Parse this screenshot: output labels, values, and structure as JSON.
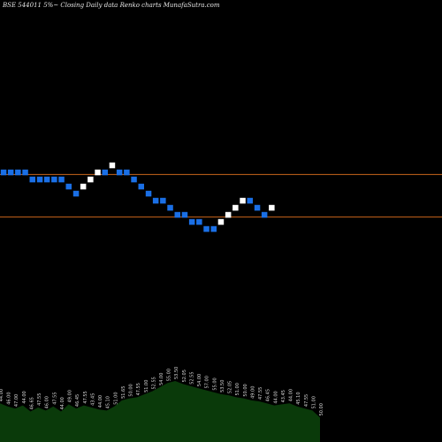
{
  "chart_data": {
    "type": "renko",
    "title": "BSE 544011 5%~ Closing Daily data Renko charts MunafaSutra.com",
    "colors": {
      "background": "#000000",
      "up_brick": "#ffffff",
      "down_brick": "#1a6fe6",
      "reference_line": "#c8651b",
      "volume_fill": "#0a3a0a",
      "volume_label": "#d8d8d8"
    },
    "brick_levels": [
      3,
      3,
      3,
      3,
      2,
      2,
      2,
      2,
      2,
      1,
      0,
      1,
      2,
      3,
      3,
      4,
      3,
      3,
      2,
      1,
      0,
      -1,
      -1,
      -2,
      -3,
      -3,
      -4,
      -4,
      -5,
      -5,
      -4,
      -3,
      -2,
      -1,
      -1,
      -2,
      -3,
      -2
    ],
    "reference_levels": [
      2.7,
      -3.3
    ],
    "volume_labels": [
      "44.00",
      "46.00",
      "47.00",
      "44.00",
      "46.65",
      "47.55",
      "46.00",
      "47.55",
      "44.00",
      "49.00",
      "46.45",
      "47.55",
      "43.45",
      "44.00",
      "45.10",
      "51.00",
      "51.65",
      "50.00",
      "47.55",
      "51.00",
      "52.55",
      "54.00",
      "55.00",
      "53.50",
      "52.05",
      "52.55",
      "54.00",
      "57.00",
      "55.00",
      "53.50",
      "52.05",
      "51.00",
      "50.00",
      "49.00",
      "47.55",
      "46.45",
      "44.00",
      "43.45",
      "44.00",
      "45.10",
      "47.55",
      "51.00",
      "50.00"
    ],
    "volume_values": [
      38,
      35,
      33,
      36,
      30,
      34,
      31,
      35,
      30,
      37,
      33,
      36,
      34,
      32,
      31,
      35,
      41,
      43,
      44,
      47,
      50,
      54,
      58,
      60,
      57,
      55,
      53,
      51,
      49,
      47,
      46,
      44,
      43,
      41,
      40,
      38,
      36,
      37,
      38,
      35,
      33,
      31,
      24
    ]
  }
}
